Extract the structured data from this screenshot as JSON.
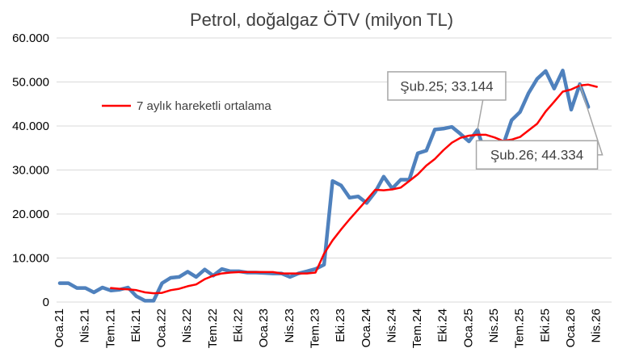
{
  "chart_data": {
    "type": "line",
    "title": "Petrol, doğalgaz ÖTV (milyon TL)",
    "xlabel": "",
    "ylabel": "",
    "ylim": [
      0,
      60000
    ],
    "yticks": [
      0,
      10000,
      20000,
      30000,
      40000,
      50000,
      60000
    ],
    "ytick_labels": [
      "0",
      "10.000",
      "20.000",
      "30.000",
      "40.000",
      "50.000",
      "60.000"
    ],
    "x_tick_labels": [
      "Oca.21",
      "Nis.21",
      "Tem.21",
      "Eki.21",
      "Oca.22",
      "Nis.22",
      "Tem.22",
      "Eki.22",
      "Oca.23",
      "Nis.23",
      "Tem.23",
      "Eki.23",
      "Oca.24",
      "Nis.24",
      "Tem.24",
      "Eki.24",
      "Oca.25",
      "Nis.25",
      "Tem.25",
      "Eki.25",
      "Oca.26",
      "Nis.26"
    ],
    "grid": "horizontal",
    "legend_position": "top-left",
    "series": [
      {
        "name": "",
        "color": "#4f81bd",
        "values": [
          4300,
          4300,
          3200,
          3200,
          2200,
          3300,
          2600,
          2800,
          3300,
          1300,
          300,
          300,
          4300,
          5500,
          5700,
          6900,
          5700,
          7400,
          6000,
          7500,
          7000,
          7000,
          6700,
          6700,
          6600,
          6500,
          6500,
          5700,
          6500,
          7000,
          7500,
          8500,
          27500,
          26500,
          23700,
          24000,
          22500,
          25000,
          28500,
          25800,
          27800,
          27800,
          33800,
          34400,
          39200,
          39400,
          39800,
          38200,
          36500,
          39100,
          33144,
          32500,
          35600,
          41300,
          43200,
          47500,
          50700,
          52500,
          48500,
          52600,
          43700,
          49500,
          44334
        ]
      },
      {
        "name": "7 aylık hareketli ortalama",
        "color": "#ff0000",
        "start_index": 6,
        "values": [
          3200,
          3000,
          2900,
          2700,
          2200,
          2000,
          2100,
          2700,
          3000,
          3600,
          4000,
          5200,
          6000,
          6500,
          6700,
          6800,
          6800,
          6800,
          6800,
          6800,
          6500,
          6500,
          6500,
          6500,
          6700,
          11000,
          14000,
          16500,
          18800,
          21000,
          23200,
          25500,
          25400,
          25600,
          26000,
          27500,
          29000,
          31000,
          32500,
          34500,
          36200,
          37300,
          37800,
          38000,
          38000,
          37400,
          36600,
          36900,
          37500,
          39000,
          40500,
          43300,
          45500,
          47800,
          48300,
          49200,
          49400,
          48900
        ]
      }
    ],
    "annotations": [
      {
        "text": "Şub.25; 33.144",
        "series": 0,
        "x_index": 49
      },
      {
        "text": "Şub.26; 44.334",
        "series": 0,
        "x_index": 61
      }
    ]
  }
}
